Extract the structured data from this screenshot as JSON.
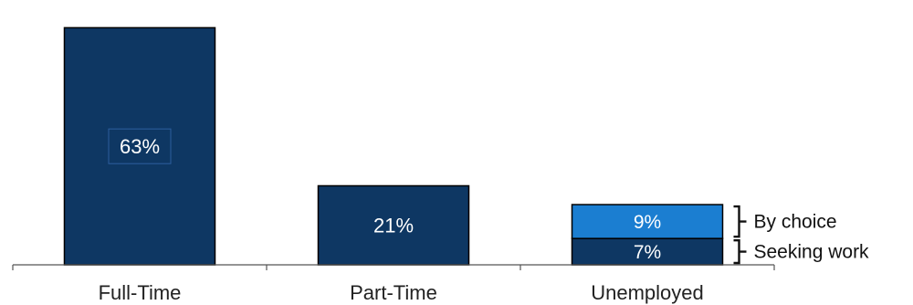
{
  "chart_data": {
    "type": "bar",
    "stacked": true,
    "categories": [
      "Full-Time",
      "Part-Time",
      "Unemployed"
    ],
    "series": [
      {
        "name": "Seeking work",
        "values": [
          63,
          21,
          7
        ],
        "color": "#0e3763"
      },
      {
        "name": "By choice",
        "values": [
          null,
          null,
          9
        ],
        "color": "#1b7ed1"
      }
    ],
    "data_labels": [
      [
        "63%",
        "21%",
        "7%"
      ],
      [
        null,
        null,
        "9%"
      ]
    ],
    "annotations": [
      {
        "text": "By choice",
        "category": "Unemployed",
        "series": "By choice"
      },
      {
        "text": "Seeking work",
        "category": "Unemployed",
        "series": "Seeking work"
      }
    ],
    "ylim": [
      0,
      66
    ],
    "grid": false,
    "legend": "none",
    "colors": {
      "dark_navy": "#0e3763",
      "bright_blue": "#1b7ed1",
      "axis": "#555555"
    }
  }
}
